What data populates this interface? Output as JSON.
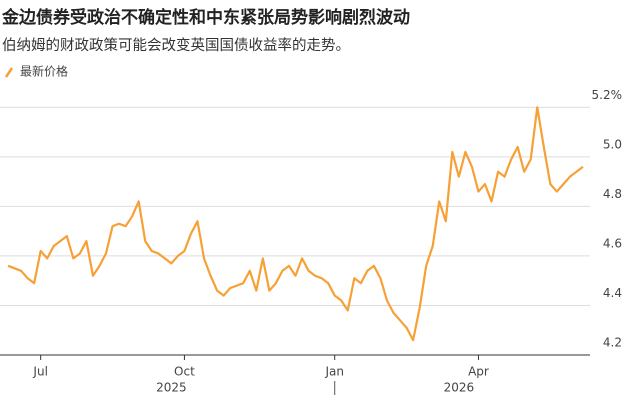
{
  "chart_data": {
    "type": "line",
    "title": "金边债券受政治不确定性和中东紧张局势影响剧烈波动",
    "subtitle": "伯纳姆的财政政策可能会改变英国国债收益率的走势。",
    "categories": [
      null,
      null,
      null,
      null,
      null,
      "Jul",
      null,
      null,
      null,
      null,
      null,
      null,
      null,
      null,
      null,
      null,
      null,
      null,
      null,
      null,
      null,
      null,
      null,
      null,
      null,
      null,
      null,
      "Oct",
      null,
      null,
      null,
      null,
      null,
      null,
      null,
      null,
      null,
      null,
      null,
      null,
      null,
      null,
      null,
      null,
      null,
      null,
      null,
      null,
      null,
      null,
      "Jan",
      null,
      null,
      null,
      null,
      null,
      null,
      null,
      null,
      null,
      null,
      null,
      null,
      null,
      null,
      null,
      null,
      null,
      null,
      null,
      null,
      null,
      "Apr",
      null,
      null,
      null,
      null,
      null,
      null,
      null,
      null,
      null,
      null,
      null,
      null,
      null,
      null,
      null,
      null
    ],
    "year_labels": [
      "2025",
      "2026"
    ],
    "series": [
      {
        "name": "最新价格",
        "color": "#f7a035",
        "values": [
          4.56,
          4.55,
          4.54,
          4.51,
          4.49,
          4.62,
          4.59,
          4.64,
          4.66,
          4.68,
          4.59,
          4.61,
          4.66,
          4.52,
          4.56,
          4.61,
          4.72,
          4.73,
          4.72,
          4.76,
          4.82,
          4.66,
          4.62,
          4.61,
          4.59,
          4.57,
          4.6,
          4.62,
          4.69,
          4.74,
          4.59,
          4.52,
          4.46,
          4.44,
          4.47,
          4.48,
          4.49,
          4.54,
          4.46,
          4.59,
          4.46,
          4.49,
          4.54,
          4.56,
          4.52,
          4.59,
          4.54,
          4.52,
          4.51,
          4.49,
          4.44,
          4.42,
          4.38,
          4.51,
          4.49,
          4.54,
          4.56,
          4.51,
          4.42,
          4.37,
          4.34,
          4.31,
          4.26,
          4.39,
          4.56,
          4.64,
          4.82,
          4.74,
          5.02,
          4.92,
          5.02,
          4.96,
          4.86,
          4.89,
          4.82,
          4.94,
          4.92,
          4.99,
          5.04,
          4.94,
          4.99,
          5.2,
          5.04,
          4.89,
          4.86,
          4.89,
          4.92,
          4.94,
          4.96
        ]
      }
    ],
    "ylim": [
      4.2,
      5.27
    ],
    "yticks": [
      4.2,
      4.4,
      4.6,
      4.8,
      {
        "value": 5,
        "label": "5.0"
      },
      {
        "value": 5.2,
        "label": "5.2%"
      }
    ],
    "grid": true
  }
}
